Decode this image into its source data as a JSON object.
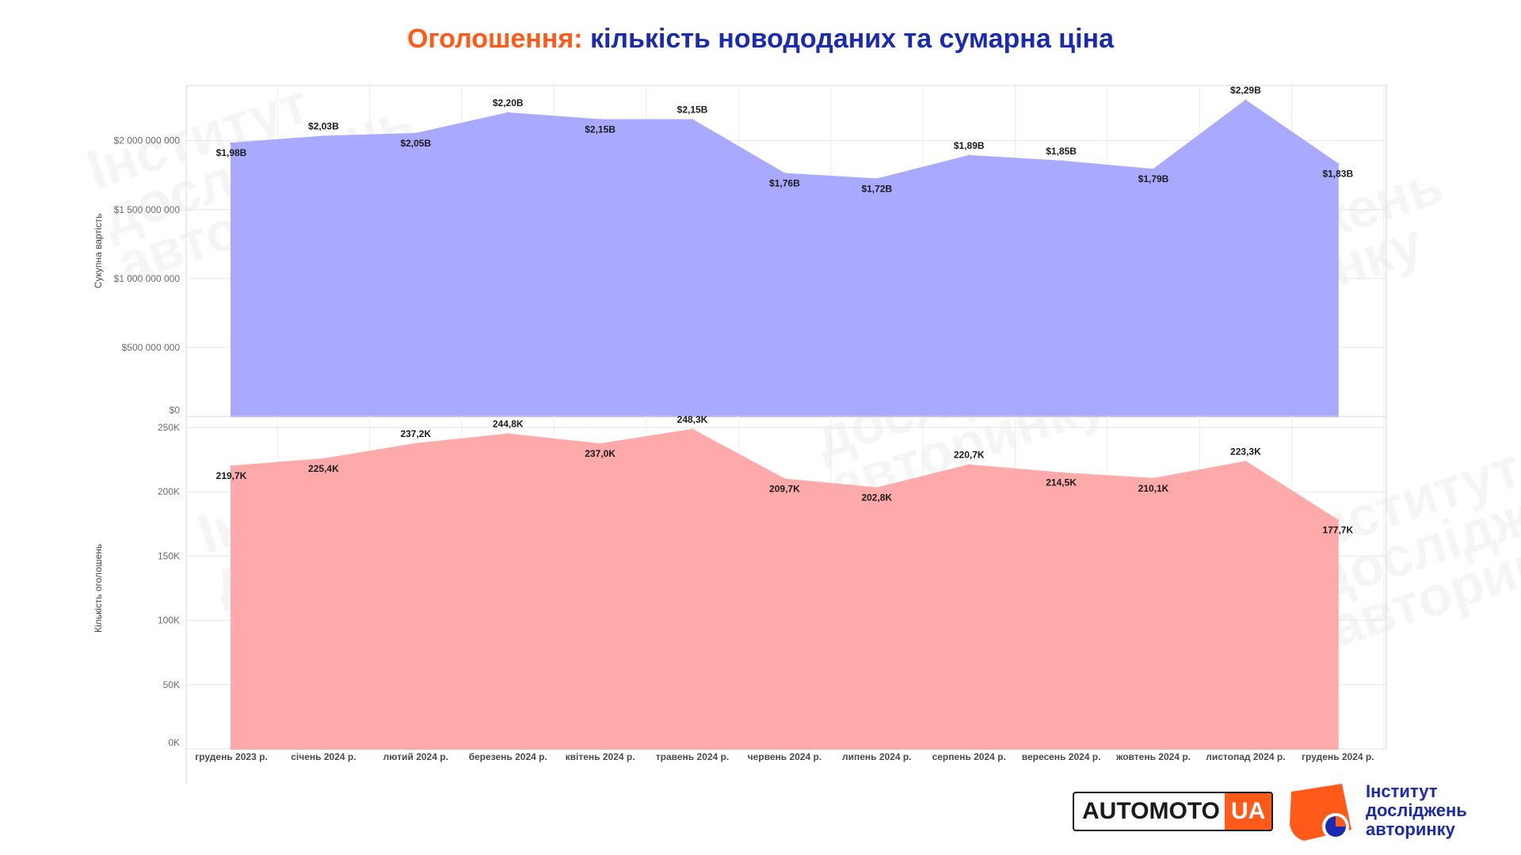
{
  "title": {
    "part1": "Оголошення:",
    "part2": "кількість новододаних та сумарна ціна"
  },
  "colors": {
    "title_accent": "#ff5a1a",
    "title_main": "#1a2bb0",
    "top_area": "#a9aaff",
    "bottom_area": "#ffaaaa"
  },
  "chart_data": [
    {
      "type": "area",
      "ylabel": "Сукупна вартість",
      "ylim": [
        0,
        2400000000
      ],
      "yticks": [
        {
          "value": 0,
          "label": "$0"
        },
        {
          "value": 500000000,
          "label": "$500 000 000"
        },
        {
          "value": 1000000000,
          "label": "$1 000 000 000"
        },
        {
          "value": 1500000000,
          "label": "$1 500 000 000"
        },
        {
          "value": 2000000000,
          "label": "$2 000 000 000"
        }
      ],
      "categories": [
        "грудень 2023 р.",
        "січень 2024 р.",
        "лютий 2024 р.",
        "березень 2024 р.",
        "квітень 2024 р.",
        "травень 2024 р.",
        "червень 2024 р.",
        "липень 2024 р.",
        "серпень 2024 р.",
        "вересень 2024 р.",
        "жовтень 2024 р.",
        "листопад 2024 р.",
        "грудень 2024 р."
      ],
      "values": [
        1980000000,
        2030000000,
        2050000000,
        2200000000,
        2150000000,
        2150000000,
        1760000000,
        1720000000,
        1890000000,
        1850000000,
        1790000000,
        2290000000,
        1830000000
      ],
      "data_labels": [
        "$1,98B",
        "$2,03B",
        "$2,05B",
        "$2,20B",
        "$2,15B",
        "$2,15B",
        "$1,76B",
        "$1,72B",
        "$1,89B",
        "$1,85B",
        "$1,79B",
        "$2,29B",
        "$1,83B"
      ],
      "label_side": [
        "below",
        "above",
        "below",
        "above",
        "below",
        "above",
        "below",
        "below",
        "above",
        "above",
        "below",
        "above",
        "below"
      ],
      "grid": true
    },
    {
      "type": "area",
      "ylabel": "Кількість оголошень",
      "ylim": [
        0,
        250000
      ],
      "yticks": [
        {
          "value": 0,
          "label": "0K"
        },
        {
          "value": 50000,
          "label": "50K"
        },
        {
          "value": 100000,
          "label": "100K"
        },
        {
          "value": 150000,
          "label": "150K"
        },
        {
          "value": 200000,
          "label": "200K"
        },
        {
          "value": 250000,
          "label": "250K"
        }
      ],
      "categories": [
        "грудень 2023 р.",
        "січень 2024 р.",
        "лютий 2024 р.",
        "березень 2024 р.",
        "квітень 2024 р.",
        "травень 2024 р.",
        "червень 2024 р.",
        "липень 2024 р.",
        "серпень 2024 р.",
        "вересень 2024 р.",
        "жовтень 2024 р.",
        "листопад 2024 р.",
        "грудень 2024 р."
      ],
      "values": [
        219700,
        225400,
        237200,
        244800,
        237000,
        248300,
        209700,
        202800,
        220700,
        214500,
        210100,
        223300,
        177700
      ],
      "data_labels": [
        "219,7K",
        "225,4K",
        "237,2K",
        "244,8K",
        "237,0K",
        "248,3K",
        "209,7K",
        "202,8K",
        "220,7K",
        "214,5K",
        "210,1K",
        "223,3K",
        "177,7K"
      ],
      "label_side": [
        "below",
        "below",
        "above",
        "above",
        "below",
        "above",
        "below",
        "below",
        "above",
        "below",
        "below",
        "above",
        "below"
      ],
      "grid": true
    }
  ],
  "watermark": [
    "Інститут",
    "досліджень",
    "авторинку"
  ],
  "logos": {
    "automoto_text": "AUTOMOTO",
    "automoto_ua": "UA",
    "institute_lines": [
      "Інститут",
      "досліджень",
      "авторинку"
    ]
  }
}
